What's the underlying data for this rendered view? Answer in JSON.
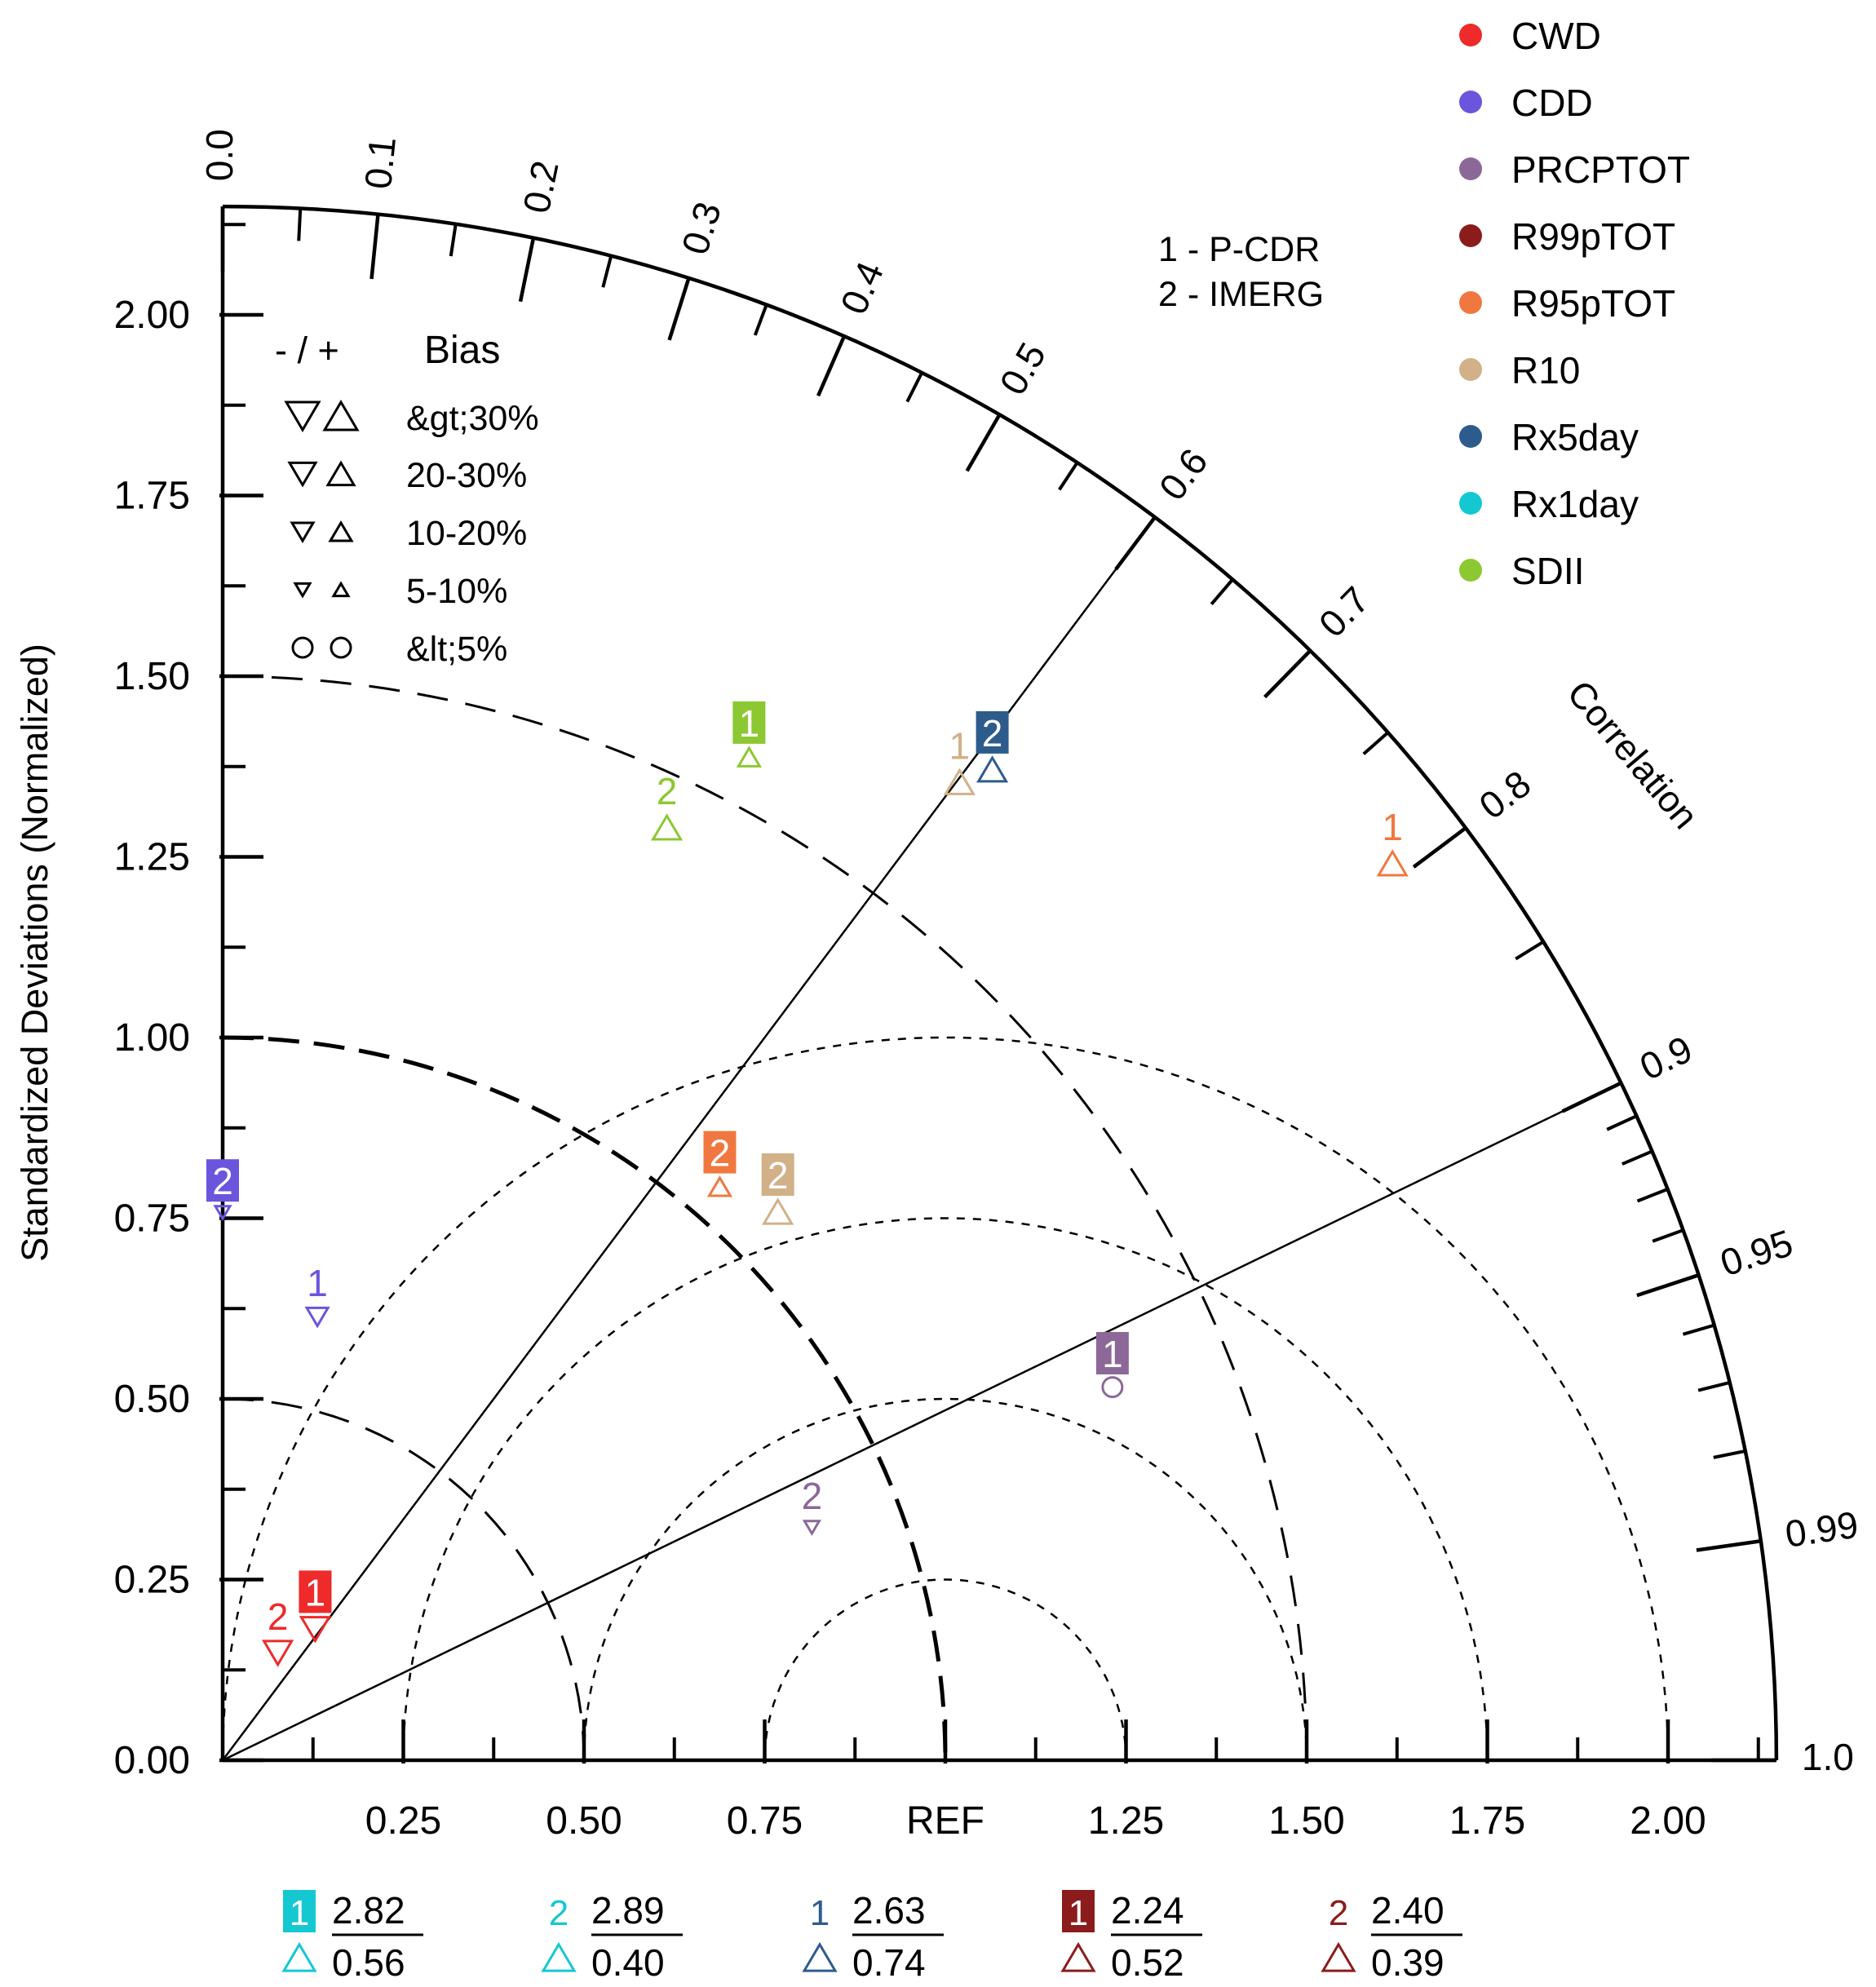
{
  "chart_data": {
    "type": "taylor",
    "ylabel": "Standardized Deviations (Normalized)",
    "arc_label": "Correlation",
    "ref_label": "REF",
    "std_max": 2.15,
    "y_ticks": [
      "0.00",
      "0.25",
      "0.50",
      "0.75",
      "1.00",
      "1.25",
      "1.50",
      "1.75",
      "2.00"
    ],
    "x_ticks": [
      "0.25",
      "0.50",
      "0.75",
      "REF",
      "1.25",
      "1.50",
      "1.75",
      "2.00"
    ],
    "corr_labels": [
      "0.0",
      "0.1",
      "0.2",
      "0.3",
      "0.4",
      "0.5",
      "0.6",
      "0.7",
      "0.8",
      "0.9",
      "0.95",
      "0.99",
      "1.0"
    ],
    "legend": [
      {
        "name": "CWD",
        "color": "#ee2a2a"
      },
      {
        "name": "CDD",
        "color": "#6b55dd"
      },
      {
        "name": "PRCPTOT",
        "color": "#8c6898"
      },
      {
        "name": "R99pTOT",
        "color": "#8c1c1c"
      },
      {
        "name": "R95pTOT",
        "color": "#f07840"
      },
      {
        "name": "R10",
        "color": "#d2b088"
      },
      {
        "name": "Rx5day",
        "color": "#2d5c8c"
      },
      {
        "name": "Rx1day",
        "color": "#14c8d2"
      },
      {
        "name": "SDII",
        "color": "#8cc832"
      }
    ],
    "datasets": [
      "1 - P-CDR",
      "2 - IMERG"
    ],
    "bias_legend": {
      "header_sign": "- / +",
      "header_title": "Bias",
      "rows": [
        "&gt;30%",
        "20-30%",
        "10-20%",
        "5-10%",
        "&lt;5%"
      ]
    },
    "points": [
      {
        "id": "1",
        "name": "SDII",
        "corr": 0.453,
        "std": 1.608,
        "boxed": true,
        "marker": "up",
        "bias": "10-20%"
      },
      {
        "id": "2",
        "name": "SDII",
        "corr": 0.417,
        "std": 1.474,
        "boxed": false,
        "marker": "up",
        "bias": "20-30%"
      },
      {
        "id": "2",
        "name": "Rx5day",
        "corr": 0.6,
        "std": 1.775,
        "boxed": true,
        "marker": "up",
        "bias": "20-30%"
      },
      {
        "id": "1",
        "name": "R10",
        "corr": 0.588,
        "std": 1.734,
        "boxed": false,
        "marker": "up",
        "bias": "20-30%"
      },
      {
        "id": "1",
        "name": "R95pTOT",
        "corr": 0.782,
        "std": 2.07,
        "boxed": false,
        "marker": "up",
        "bias": "20-30%"
      },
      {
        "id": "2",
        "name": "R95pTOT",
        "corr": 0.634,
        "std": 1.085,
        "boxed": true,
        "marker": "up",
        "bias": "10-20%"
      },
      {
        "id": "2",
        "name": "R10",
        "corr": 0.689,
        "std": 1.115,
        "boxed": true,
        "marker": "up",
        "bias": "20-30%"
      },
      {
        "id": "2",
        "name": "CDD",
        "corr": 0.0,
        "std": 0.8,
        "boxed": true,
        "marker": "down",
        "bias": "5-10%"
      },
      {
        "id": "1",
        "name": "CDD",
        "corr": 0.195,
        "std": 0.672,
        "boxed": false,
        "marker": "down",
        "bias": "10-20%"
      },
      {
        "id": "1",
        "name": "PRCPTOT",
        "corr": 0.91,
        "std": 1.353,
        "boxed": true,
        "marker": "circle",
        "bias": "<5%"
      },
      {
        "id": "2",
        "name": "PRCPTOT",
        "corr": 0.913,
        "std": 0.893,
        "boxed": false,
        "marker": "down",
        "bias": "5-10%"
      },
      {
        "id": "1",
        "name": "CWD",
        "corr": 0.485,
        "std": 0.264,
        "boxed": true,
        "marker": "down",
        "bias": "20-30%"
      },
      {
        "id": "2",
        "name": "CWD",
        "corr": 0.36,
        "std": 0.212,
        "boxed": false,
        "marker": "down",
        "bias": "20-30%"
      }
    ],
    "off_scale": [
      {
        "id": "1",
        "name": "Rx1day",
        "boxed": true,
        "std": "2.82",
        "corr": "0.56",
        "color": "#14c8d2"
      },
      {
        "id": "2",
        "name": "Rx1day",
        "boxed": false,
        "std": "2.89",
        "corr": "0.40",
        "color": "#14c8d2"
      },
      {
        "id": "1",
        "name": "Rx5day",
        "boxed": false,
        "std": "2.63",
        "corr": "0.74",
        "color": "#2d5c8c"
      },
      {
        "id": "1",
        "name": "R99pTOT",
        "boxed": true,
        "std": "2.24",
        "corr": "0.52",
        "color": "#8c1c1c"
      },
      {
        "id": "2",
        "name": "R99pTOT",
        "boxed": false,
        "std": "2.40",
        "corr": "0.39",
        "color": "#8c1c1c"
      }
    ]
  }
}
